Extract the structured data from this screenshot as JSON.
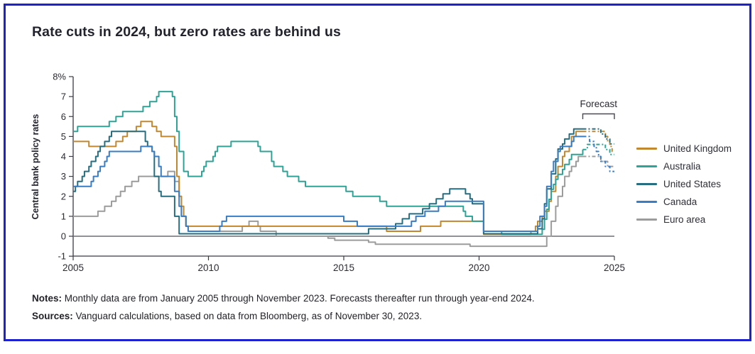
{
  "title": "Rate cuts in 2024, but zero rates are behind us",
  "forecast_label": "Forecast",
  "notes": {
    "label": "Notes:",
    "text": " Monthly data are from January 2005 through November 2023. Forecasts thereafter run through year-end 2024."
  },
  "sources": {
    "label": "Sources:",
    "text": " Vanguard calculations, based on data from Bloomberg, as of November 30, 2023."
  },
  "colors": {
    "frame_border": "#1e22ce",
    "axis": "#3a3a42",
    "zero_line": "#6e6e73",
    "tick_text": "#2b2b33",
    "bracket": "#4a4a50"
  },
  "chart_data": {
    "type": "line",
    "title": "Rate cuts in 2024, but zero rates are behind us",
    "xlabel": "",
    "ylabel": "Central bank policy rates",
    "y_unit": "%",
    "ylim": [
      -1,
      8
    ],
    "y_tick_values": [
      8,
      7,
      6,
      5,
      4,
      3,
      2,
      1,
      0,
      -1
    ],
    "y_tick_labels": [
      "8%",
      "7",
      "6",
      "5",
      "4",
      "3",
      "2",
      "1",
      "0",
      "-1"
    ],
    "x_tick_labels": [
      "2005",
      "2010",
      "2015",
      "2020",
      "2025"
    ],
    "x_tick_years": [
      2005,
      2010,
      2015,
      2020,
      2025
    ],
    "x_monthly_start": "2005-01",
    "x_monthly_end": "2024-12",
    "actuals_through": "2023-11",
    "forecast_style": "dashed",
    "grid": false,
    "legend_position": "right",
    "series": [
      {
        "name": "United Kingdom",
        "color": "#c1882f",
        "steps": [
          [
            "2005-01",
            4.75
          ],
          [
            "2005-08",
            4.5
          ],
          [
            "2006-08",
            4.75
          ],
          [
            "2006-11",
            5.0
          ],
          [
            "2007-01",
            5.25
          ],
          [
            "2007-05",
            5.5
          ],
          [
            "2007-07",
            5.75
          ],
          [
            "2007-12",
            5.5
          ],
          [
            "2008-02",
            5.25
          ],
          [
            "2008-04",
            5.0
          ],
          [
            "2008-10",
            4.5
          ],
          [
            "2008-11",
            3.0
          ],
          [
            "2008-12",
            2.0
          ],
          [
            "2009-01",
            1.5
          ],
          [
            "2009-02",
            1.0
          ],
          [
            "2009-03",
            0.5
          ],
          [
            "2016-08",
            0.25
          ],
          [
            "2017-11",
            0.5
          ],
          [
            "2018-08",
            0.75
          ],
          [
            "2020-03",
            0.1
          ],
          [
            "2021-12",
            0.25
          ],
          [
            "2022-02",
            0.5
          ],
          [
            "2022-03",
            0.75
          ],
          [
            "2022-05",
            1.0
          ],
          [
            "2022-06",
            1.25
          ],
          [
            "2022-08",
            1.75
          ],
          [
            "2022-09",
            2.25
          ],
          [
            "2022-11",
            3.0
          ],
          [
            "2022-12",
            3.5
          ],
          [
            "2023-02",
            4.0
          ],
          [
            "2023-03",
            4.25
          ],
          [
            "2023-05",
            4.5
          ],
          [
            "2023-06",
            5.0
          ],
          [
            "2023-08",
            5.25
          ]
        ],
        "forecast_steps": [
          [
            "2024-09",
            5.0
          ],
          [
            "2024-10",
            4.75
          ],
          [
            "2024-11",
            4.5
          ],
          [
            "2024-12",
            4.25
          ]
        ]
      },
      {
        "name": "Australia",
        "color": "#2fa395",
        "steps": [
          [
            "2005-01",
            5.25
          ],
          [
            "2005-03",
            5.5
          ],
          [
            "2006-05",
            5.75
          ],
          [
            "2006-08",
            6.0
          ],
          [
            "2006-11",
            6.25
          ],
          [
            "2007-08",
            6.5
          ],
          [
            "2007-11",
            6.75
          ],
          [
            "2008-02",
            7.0
          ],
          [
            "2008-03",
            7.25
          ],
          [
            "2008-09",
            7.0
          ],
          [
            "2008-10",
            6.0
          ],
          [
            "2008-11",
            5.25
          ],
          [
            "2008-12",
            4.25
          ],
          [
            "2009-02",
            3.25
          ],
          [
            "2009-04",
            3.0
          ],
          [
            "2009-10",
            3.25
          ],
          [
            "2009-11",
            3.5
          ],
          [
            "2009-12",
            3.75
          ],
          [
            "2010-03",
            4.0
          ],
          [
            "2010-04",
            4.25
          ],
          [
            "2010-05",
            4.5
          ],
          [
            "2010-11",
            4.75
          ],
          [
            "2011-11",
            4.5
          ],
          [
            "2011-12",
            4.25
          ],
          [
            "2012-05",
            3.75
          ],
          [
            "2012-06",
            3.5
          ],
          [
            "2012-10",
            3.25
          ],
          [
            "2012-12",
            3.0
          ],
          [
            "2013-05",
            2.75
          ],
          [
            "2013-08",
            2.5
          ],
          [
            "2015-02",
            2.25
          ],
          [
            "2015-05",
            2.0
          ],
          [
            "2016-05",
            1.75
          ],
          [
            "2016-08",
            1.5
          ],
          [
            "2019-06",
            1.25
          ],
          [
            "2019-07",
            1.0
          ],
          [
            "2019-10",
            0.75
          ],
          [
            "2020-03",
            0.25
          ],
          [
            "2020-11",
            0.1
          ],
          [
            "2022-05",
            0.35
          ],
          [
            "2022-06",
            0.85
          ],
          [
            "2022-07",
            1.35
          ],
          [
            "2022-08",
            1.85
          ],
          [
            "2022-09",
            2.35
          ],
          [
            "2022-10",
            2.6
          ],
          [
            "2022-11",
            2.85
          ],
          [
            "2022-12",
            3.1
          ],
          [
            "2023-02",
            3.35
          ],
          [
            "2023-03",
            3.6
          ],
          [
            "2023-05",
            3.85
          ],
          [
            "2023-06",
            4.1
          ],
          [
            "2023-11",
            4.35
          ]
        ],
        "forecast_steps": [
          [
            "2024-01",
            4.6
          ],
          [
            "2024-09",
            4.35
          ],
          [
            "2024-11",
            4.1
          ]
        ]
      },
      {
        "name": "United States",
        "color": "#266e80",
        "steps": [
          [
            "2005-01",
            2.25
          ],
          [
            "2005-02",
            2.5
          ],
          [
            "2005-03",
            2.75
          ],
          [
            "2005-05",
            3.0
          ],
          [
            "2005-06",
            3.25
          ],
          [
            "2005-08",
            3.5
          ],
          [
            "2005-09",
            3.75
          ],
          [
            "2005-11",
            4.0
          ],
          [
            "2005-12",
            4.25
          ],
          [
            "2006-01",
            4.5
          ],
          [
            "2006-03",
            4.75
          ],
          [
            "2006-05",
            5.0
          ],
          [
            "2006-06",
            5.25
          ],
          [
            "2007-09",
            4.75
          ],
          [
            "2007-10",
            4.5
          ],
          [
            "2007-12",
            4.25
          ],
          [
            "2008-01",
            3.0
          ],
          [
            "2008-03",
            2.25
          ],
          [
            "2008-04",
            2.0
          ],
          [
            "2008-10",
            1.0
          ],
          [
            "2008-12",
            0.125
          ],
          [
            "2015-12",
            0.375
          ],
          [
            "2016-12",
            0.625
          ],
          [
            "2017-03",
            0.875
          ],
          [
            "2017-06",
            1.125
          ],
          [
            "2017-12",
            1.375
          ],
          [
            "2018-03",
            1.625
          ],
          [
            "2018-06",
            1.875
          ],
          [
            "2018-09",
            2.125
          ],
          [
            "2018-12",
            2.375
          ],
          [
            "2019-07",
            2.125
          ],
          [
            "2019-09",
            1.875
          ],
          [
            "2019-10",
            1.625
          ],
          [
            "2020-03",
            0.125
          ],
          [
            "2022-03",
            0.375
          ],
          [
            "2022-05",
            0.875
          ],
          [
            "2022-06",
            1.625
          ],
          [
            "2022-07",
            2.375
          ],
          [
            "2022-09",
            3.125
          ],
          [
            "2022-11",
            3.875
          ],
          [
            "2022-12",
            4.375
          ],
          [
            "2023-02",
            4.625
          ],
          [
            "2023-03",
            4.875
          ],
          [
            "2023-05",
            5.125
          ],
          [
            "2023-07",
            5.375
          ]
        ],
        "forecast_steps": [
          [
            "2024-07",
            5.125
          ],
          [
            "2024-09",
            4.875
          ],
          [
            "2024-11",
            4.625
          ]
        ]
      },
      {
        "name": "Canada",
        "color": "#3a7dc2",
        "steps": [
          [
            "2005-01",
            2.5
          ],
          [
            "2005-09",
            2.75
          ],
          [
            "2005-10",
            3.0
          ],
          [
            "2005-12",
            3.25
          ],
          [
            "2006-01",
            3.5
          ],
          [
            "2006-03",
            3.75
          ],
          [
            "2006-04",
            4.0
          ],
          [
            "2006-05",
            4.25
          ],
          [
            "2007-07",
            4.5
          ],
          [
            "2007-12",
            4.25
          ],
          [
            "2008-01",
            4.0
          ],
          [
            "2008-03",
            3.5
          ],
          [
            "2008-04",
            3.0
          ],
          [
            "2008-10",
            2.25
          ],
          [
            "2008-12",
            1.5
          ],
          [
            "2009-01",
            1.0
          ],
          [
            "2009-03",
            0.5
          ],
          [
            "2009-04",
            0.25
          ],
          [
            "2010-06",
            0.5
          ],
          [
            "2010-07",
            0.75
          ],
          [
            "2010-09",
            1.0
          ],
          [
            "2015-01",
            0.75
          ],
          [
            "2015-07",
            0.5
          ],
          [
            "2017-07",
            0.75
          ],
          [
            "2017-09",
            1.0
          ],
          [
            "2018-01",
            1.25
          ],
          [
            "2018-07",
            1.5
          ],
          [
            "2018-10",
            1.75
          ],
          [
            "2020-03",
            0.25
          ],
          [
            "2022-03",
            0.5
          ],
          [
            "2022-04",
            1.0
          ],
          [
            "2022-06",
            1.5
          ],
          [
            "2022-07",
            2.5
          ],
          [
            "2022-09",
            3.25
          ],
          [
            "2022-10",
            3.75
          ],
          [
            "2022-12",
            4.25
          ],
          [
            "2023-01",
            4.5
          ],
          [
            "2023-06",
            4.75
          ],
          [
            "2023-07",
            5.0
          ]
        ],
        "forecast_steps": [
          [
            "2024-02",
            4.75
          ],
          [
            "2024-04",
            4.5
          ],
          [
            "2024-05",
            4.25
          ],
          [
            "2024-06",
            4.0
          ],
          [
            "2024-07",
            3.75
          ],
          [
            "2024-09",
            3.5
          ],
          [
            "2024-11",
            3.25
          ]
        ]
      },
      {
        "name": "Euro area",
        "color": "#9c9c9c",
        "steps": [
          [
            "2005-01",
            1.0
          ],
          [
            "2005-12",
            1.25
          ],
          [
            "2006-03",
            1.5
          ],
          [
            "2006-06",
            1.75
          ],
          [
            "2006-08",
            2.0
          ],
          [
            "2006-10",
            2.25
          ],
          [
            "2006-12",
            2.5
          ],
          [
            "2007-03",
            2.75
          ],
          [
            "2007-06",
            3.0
          ],
          [
            "2008-07",
            3.25
          ],
          [
            "2008-10",
            2.75
          ],
          [
            "2008-12",
            2.0
          ],
          [
            "2009-01",
            1.0
          ],
          [
            "2009-03",
            0.5
          ],
          [
            "2009-04",
            0.25
          ],
          [
            "2011-04",
            0.5
          ],
          [
            "2011-07",
            0.75
          ],
          [
            "2011-11",
            0.5
          ],
          [
            "2011-12",
            0.25
          ],
          [
            "2012-07",
            0.0
          ],
          [
            "2014-06",
            -0.1
          ],
          [
            "2014-09",
            -0.2
          ],
          [
            "2015-12",
            -0.3
          ],
          [
            "2016-03",
            -0.4
          ],
          [
            "2019-09",
            -0.5
          ],
          [
            "2022-07",
            0.0
          ],
          [
            "2022-09",
            0.75
          ],
          [
            "2022-11",
            1.5
          ],
          [
            "2022-12",
            2.0
          ],
          [
            "2023-02",
            2.5
          ],
          [
            "2023-03",
            3.0
          ],
          [
            "2023-05",
            3.25
          ],
          [
            "2023-06",
            3.5
          ],
          [
            "2023-08",
            3.75
          ],
          [
            "2023-09",
            4.0
          ]
        ],
        "forecast_steps": [
          [
            "2024-07",
            3.75
          ],
          [
            "2024-10",
            3.5
          ]
        ]
      }
    ]
  }
}
